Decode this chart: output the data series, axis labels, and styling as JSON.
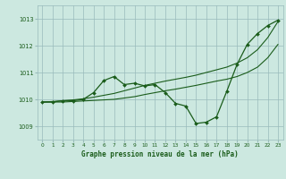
{
  "title": "Graphe pression niveau de la mer (hPa)",
  "background_color": "#cce8e0",
  "grid_color": "#99bbbb",
  "text_color": "#1a5c1a",
  "line_color_dark": "#1a5c1a",
  "xlim": [
    -0.5,
    23.5
  ],
  "ylim": [
    1008.5,
    1013.5
  ],
  "yticks": [
    1009,
    1010,
    1011,
    1012,
    1013
  ],
  "xtick_labels": [
    "0",
    "1",
    "2",
    "3",
    "4",
    "5",
    "6",
    "7",
    "8",
    "9",
    "10",
    "11",
    "12",
    "13",
    "14",
    "15",
    "16",
    "17",
    "18",
    "19",
    "20",
    "21",
    "22",
    "23"
  ],
  "series1_x": [
    0,
    1,
    2,
    3,
    4,
    5,
    6,
    7,
    8,
    9,
    10,
    11,
    12,
    13,
    14,
    15,
    16,
    17,
    18,
    19,
    20,
    21,
    22,
    23
  ],
  "series1_y": [
    1009.9,
    1009.9,
    1009.95,
    1009.95,
    1010.0,
    1010.25,
    1010.7,
    1010.85,
    1010.55,
    1010.6,
    1010.5,
    1010.55,
    1010.25,
    1009.85,
    1009.75,
    1009.1,
    1009.15,
    1009.35,
    1010.3,
    1011.3,
    1012.05,
    1012.45,
    1012.75,
    1012.95
  ],
  "series2_x": [
    0,
    1,
    2,
    3,
    4,
    5,
    6,
    7,
    8,
    9,
    10,
    11,
    12,
    13,
    14,
    15,
    16,
    17,
    18,
    19,
    20,
    21,
    22,
    23
  ],
  "series2_y": [
    1009.9,
    1009.92,
    1009.95,
    1009.98,
    1010.02,
    1010.08,
    1010.15,
    1010.22,
    1010.32,
    1010.42,
    1010.52,
    1010.6,
    1010.68,
    1010.75,
    1010.82,
    1010.9,
    1011.0,
    1011.1,
    1011.2,
    1011.35,
    1011.55,
    1011.85,
    1012.3,
    1012.9
  ],
  "series3_x": [
    0,
    1,
    2,
    3,
    4,
    5,
    6,
    7,
    8,
    9,
    10,
    11,
    12,
    13,
    14,
    15,
    16,
    17,
    18,
    19,
    20,
    21,
    22,
    23
  ],
  "series3_y": [
    1009.9,
    1009.9,
    1009.9,
    1009.92,
    1009.94,
    1009.96,
    1009.98,
    1010.0,
    1010.05,
    1010.1,
    1010.18,
    1010.25,
    1010.32,
    1010.38,
    1010.45,
    1010.52,
    1010.6,
    1010.68,
    1010.75,
    1010.85,
    1011.0,
    1011.2,
    1011.55,
    1012.05
  ]
}
